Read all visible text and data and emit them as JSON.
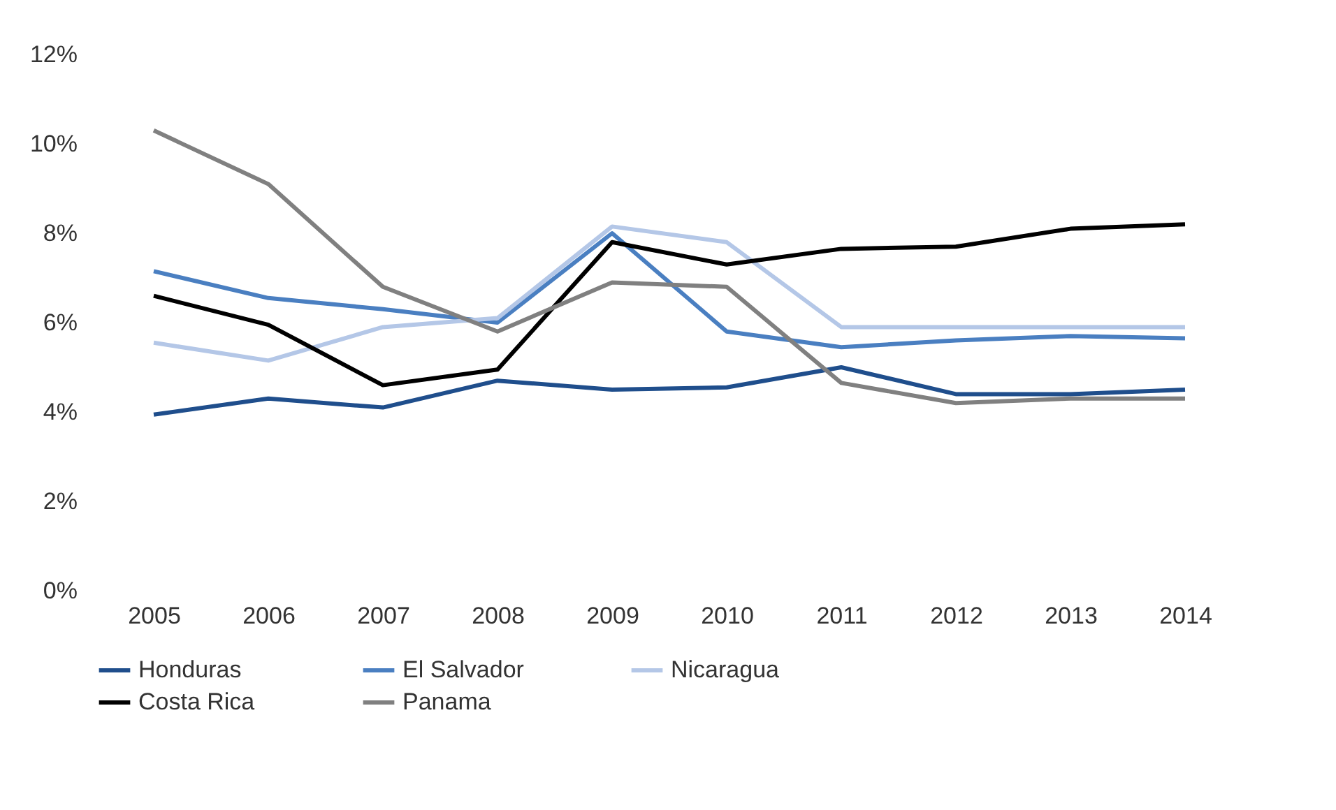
{
  "chart_data": {
    "type": "line",
    "categories": [
      "2005",
      "2006",
      "2007",
      "2008",
      "2009",
      "2010",
      "2011",
      "2012",
      "2013",
      "2014"
    ],
    "series": [
      {
        "name": "Honduras",
        "color": "#1f4e8c",
        "values": [
          3.94,
          4.3,
          4.1,
          4.7,
          4.5,
          4.55,
          5.0,
          4.4,
          4.4,
          4.5
        ]
      },
      {
        "name": "El Salvador",
        "color": "#4a7fc1",
        "values": [
          7.15,
          6.55,
          6.3,
          6.0,
          8.0,
          5.8,
          5.45,
          5.6,
          5.7,
          5.65
        ]
      },
      {
        "name": "Nicaragua",
        "color": "#b4c7e7",
        "values": [
          5.55,
          5.15,
          5.9,
          6.1,
          8.15,
          7.8,
          5.9,
          5.9,
          5.9,
          5.9
        ]
      },
      {
        "name": "Costa Rica",
        "color": "#000000",
        "values": [
          6.6,
          5.95,
          4.6,
          4.95,
          7.8,
          7.3,
          7.65,
          7.7,
          8.1,
          8.2
        ]
      },
      {
        "name": "Panama",
        "color": "#808080",
        "values": [
          10.3,
          9.1,
          6.8,
          5.8,
          6.9,
          6.8,
          4.65,
          4.2,
          4.3,
          4.3
        ]
      }
    ],
    "ylim": [
      0,
      12
    ],
    "yticks": [
      {
        "value": 0,
        "label": "0%"
      },
      {
        "value": 2,
        "label": "2%"
      },
      {
        "value": 4,
        "label": "4%"
      },
      {
        "value": 6,
        "label": "6%"
      },
      {
        "value": 8,
        "label": "8%"
      },
      {
        "value": 10,
        "label": "10%"
      },
      {
        "value": 12,
        "label": "12%"
      }
    ],
    "grid": false,
    "legend": "bottom",
    "marker": "none",
    "line_style": "solid"
  }
}
